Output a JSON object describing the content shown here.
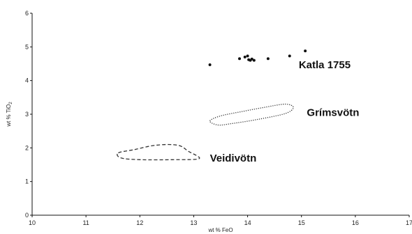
{
  "chart_data": {
    "type": "scatter",
    "xlabel": "wt % FeO",
    "ylabel_main": "wt % TiO",
    "ylabel_sub": "2",
    "xlim": [
      10,
      17
    ],
    "ylim": [
      0,
      6
    ],
    "xticks": [
      "10",
      "11",
      "12",
      "13",
      "14",
      "15",
      "16",
      "17"
    ],
    "yticks": [
      "0",
      "1",
      "2",
      "3",
      "4",
      "5",
      "6"
    ],
    "grid": false,
    "series": [
      {
        "name": "Katla 1755",
        "style": "points",
        "color": "#111111",
        "points": [
          {
            "x": 13.3,
            "y": 4.47
          },
          {
            "x": 13.85,
            "y": 4.65
          },
          {
            "x": 13.95,
            "y": 4.7
          },
          {
            "x": 14.0,
            "y": 4.73
          },
          {
            "x": 14.02,
            "y": 4.62
          },
          {
            "x": 14.05,
            "y": 4.6
          },
          {
            "x": 14.08,
            "y": 4.64
          },
          {
            "x": 14.12,
            "y": 4.6
          },
          {
            "x": 14.38,
            "y": 4.65
          },
          {
            "x": 14.78,
            "y": 4.73
          },
          {
            "x": 15.07,
            "y": 4.88
          }
        ]
      },
      {
        "name": "Grímsvötn",
        "style": "dotted-outline",
        "color": "#333333",
        "outline": [
          {
            "x": 13.3,
            "y": 2.8
          },
          {
            "x": 13.5,
            "y": 2.95
          },
          {
            "x": 13.9,
            "y": 3.08
          },
          {
            "x": 14.3,
            "y": 3.2
          },
          {
            "x": 14.7,
            "y": 3.3
          },
          {
            "x": 14.85,
            "y": 3.2
          },
          {
            "x": 14.7,
            "y": 3.02
          },
          {
            "x": 14.2,
            "y": 2.85
          },
          {
            "x": 13.7,
            "y": 2.72
          },
          {
            "x": 13.45,
            "y": 2.68
          }
        ]
      },
      {
        "name": "Veidivötn",
        "style": "dashed-outline",
        "color": "#333333",
        "outline": [
          {
            "x": 11.6,
            "y": 1.85
          },
          {
            "x": 11.9,
            "y": 1.95
          },
          {
            "x": 12.3,
            "y": 2.08
          },
          {
            "x": 12.7,
            "y": 2.08
          },
          {
            "x": 12.9,
            "y": 1.9
          },
          {
            "x": 13.1,
            "y": 1.68
          },
          {
            "x": 12.6,
            "y": 1.65
          },
          {
            "x": 12.0,
            "y": 1.65
          },
          {
            "x": 11.65,
            "y": 1.7
          }
        ]
      }
    ],
    "labels": [
      {
        "text": "Katla 1755",
        "series": "Katla 1755",
        "x": 14.95,
        "y": 4.47
      },
      {
        "text": "Grímsvötn",
        "series": "Grímsvötn",
        "x": 15.1,
        "y": 3.05
      },
      {
        "text": "Veidivötn",
        "series": "Veidivötn",
        "x": 13.3,
        "y": 1.7
      }
    ]
  }
}
